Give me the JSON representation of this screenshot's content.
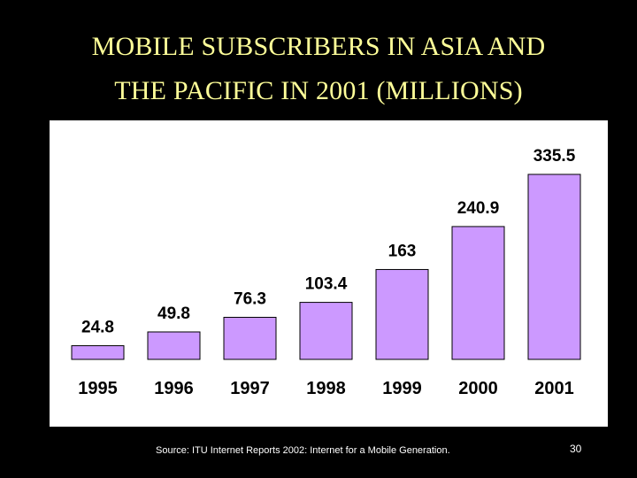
{
  "slide": {
    "title_line1": "MOBILE SUBSCRIBERS IN ASIA AND",
    "title_line2": "THE PACIFIC IN 2001 (MILLIONS)",
    "source": "Source: ITU Internet Reports 2002: Internet for a Mobile Generation.",
    "page_number": "30"
  },
  "colors": {
    "background": "#000000",
    "title": "#ffff99",
    "panel": "#ffffff",
    "bar_fill": "#cc99ff",
    "bar_stroke": "#000000"
  },
  "chart_data": {
    "type": "bar",
    "title": "MOBILE SUBSCRIBERS IN ASIA AND THE PACIFIC IN 2001 (MILLIONS)",
    "categories": [
      "1995",
      "1996",
      "1997",
      "1998",
      "1999",
      "2000",
      "2001"
    ],
    "values": [
      24.8,
      49.8,
      76.3,
      103.4,
      163,
      240.9,
      335.5
    ],
    "value_labels": [
      "24.8",
      "49.8",
      "76.3",
      "103.4",
      "163",
      "240.9",
      "335.5"
    ],
    "xlabel": "",
    "ylabel": "",
    "ylim": [
      0,
      335.5
    ],
    "grid": false,
    "legend": "none",
    "data_labels": "above-bars"
  }
}
